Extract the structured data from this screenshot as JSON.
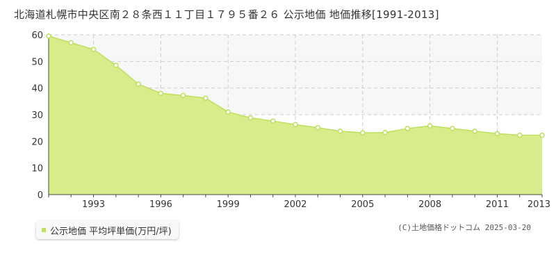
{
  "colors": {
    "area_fill": "#d9ec8c",
    "line": "#bde05a",
    "marker_fill": "#ffffff",
    "grid": "#cccccc",
    "text": "#333333",
    "plot_bg_upper": "#f7f7f7"
  },
  "chart_data": {
    "type": "area",
    "title": "北海道札幌市中央区南２８条西１１丁目１７９５番２６ 公示地価 地価推移[1991-2013]",
    "x": [
      1991,
      1992,
      1993,
      1994,
      1995,
      1996,
      1997,
      1998,
      1999,
      2000,
      2001,
      2002,
      2003,
      2004,
      2005,
      2006,
      2007,
      2008,
      2009,
      2010,
      2011,
      2012,
      2013
    ],
    "series": [
      {
        "name": "公示地価 平均坪単価(万円/坪)",
        "values": [
          59.5,
          57.0,
          54.5,
          48.5,
          41.5,
          38.0,
          37.2,
          36.2,
          31.0,
          28.8,
          27.6,
          26.3,
          25.1,
          23.8,
          23.2,
          23.3,
          24.8,
          25.8,
          24.8,
          23.8,
          22.9,
          22.3,
          22.3
        ]
      }
    ],
    "ylim": [
      0,
      60
    ],
    "yticks": [
      0,
      10,
      20,
      30,
      40,
      50,
      60
    ],
    "xlim": [
      1991,
      2013
    ],
    "xtick_labels": [
      "1993",
      "1996",
      "1999",
      "2002",
      "2005",
      "2008",
      "2011",
      "2013"
    ],
    "xlabel": "",
    "ylabel": "",
    "grid": true,
    "legend_position": "bottom-left"
  },
  "legend": {
    "label": "公示地価 平均坪単価(万円/坪)"
  },
  "copyright": "(C)土地価格ドットコム 2025-03-20"
}
